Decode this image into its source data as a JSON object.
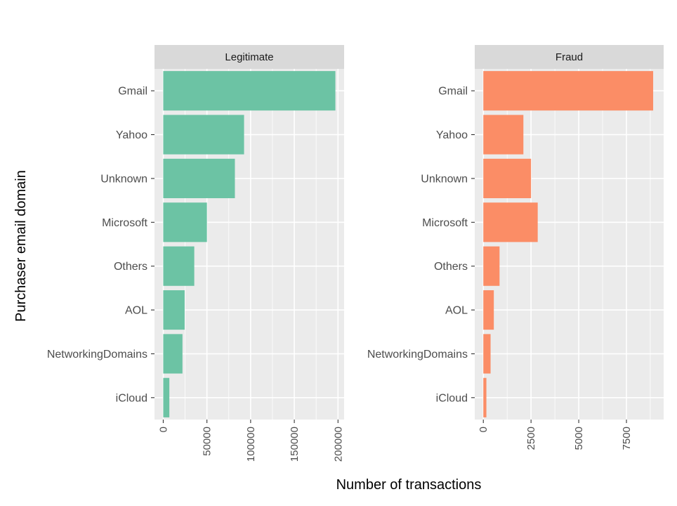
{
  "chart_data": {
    "type": "bar",
    "orientation": "horizontal",
    "xlabel": "Number of transactions",
    "ylabel": "Purchaser email domain",
    "categories": [
      "Gmail",
      "Yahoo",
      "Unknown",
      "Microsoft",
      "Others",
      "AOL",
      "NetworkingDomains",
      "iCloud"
    ],
    "panels": [
      {
        "name": "Legitimate",
        "color": "#6cc3a4",
        "values": [
          197000,
          92500,
          82000,
          50000,
          35500,
          24500,
          22000,
          7000
        ],
        "xlim": [
          -10000,
          207000
        ],
        "ticks": [
          0,
          50000,
          100000,
          150000,
          200000
        ],
        "tick_labels": [
          "0",
          "50000",
          "100000",
          "150000",
          "200000"
        ]
      },
      {
        "name": "Fraud",
        "color": "#fb8d66",
        "values": [
          8900,
          2100,
          2500,
          2850,
          850,
          550,
          380,
          160
        ],
        "xlim": [
          -450,
          9450
        ],
        "ticks": [
          0,
          2500,
          5000,
          7500
        ],
        "tick_labels": [
          "0",
          "2500",
          "5000",
          "7500"
        ]
      }
    ],
    "grid": true,
    "legend": "none"
  }
}
